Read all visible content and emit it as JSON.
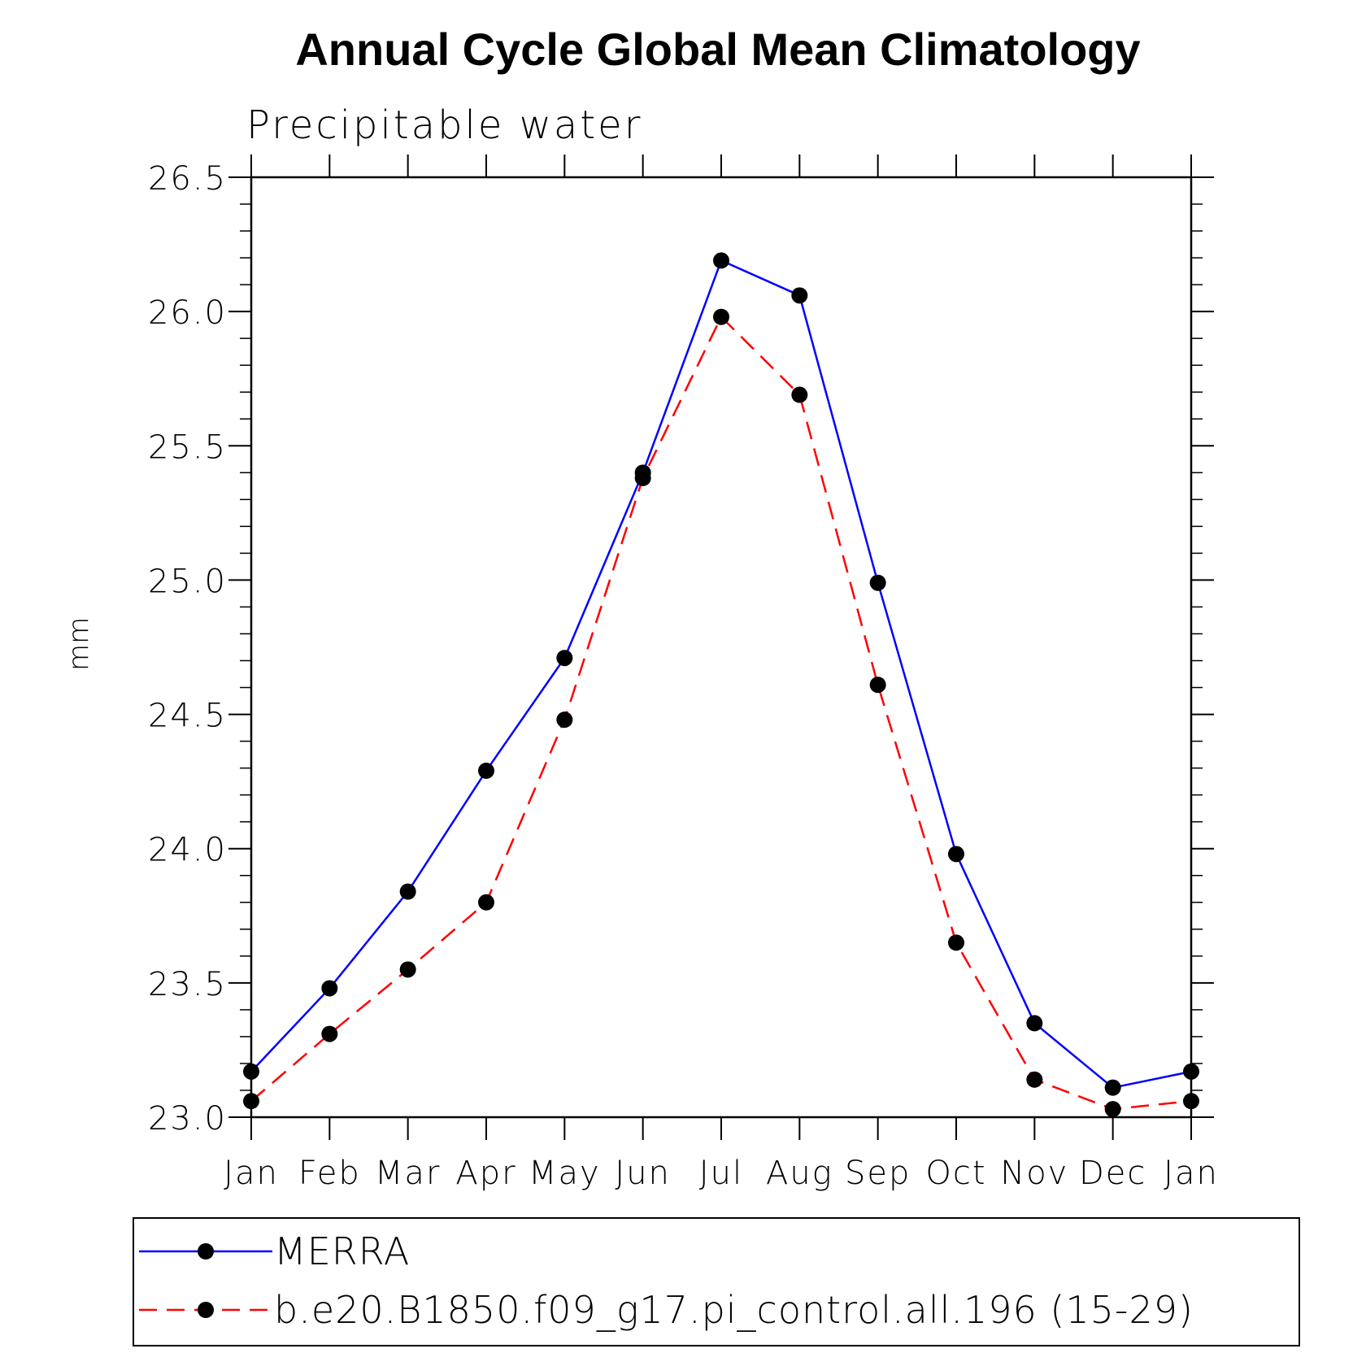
{
  "chart_data": {
    "type": "line",
    "title": "Annual Cycle Global Mean Climatology",
    "subtitle": "Precipitable water",
    "xlabel": "",
    "ylabel": "mm",
    "categories": [
      "Jan",
      "Feb",
      "Mar",
      "Apr",
      "May",
      "Jun",
      "Jul",
      "Aug",
      "Sep",
      "Oct",
      "Nov",
      "Dec",
      "Jan"
    ],
    "ylim": [
      23.0,
      26.5
    ],
    "yticks": [
      "23.0",
      "23.5",
      "24.0",
      "24.5",
      "25.0",
      "25.5",
      "26.0",
      "26.5"
    ],
    "grid": false,
    "legend_position": "bottom",
    "series": [
      {
        "name": "MERRA",
        "color": "#0000ff",
        "dash": "solid",
        "values": [
          23.17,
          23.48,
          23.84,
          24.29,
          24.71,
          25.4,
          26.19,
          26.06,
          24.99,
          23.98,
          23.35,
          23.11,
          23.17
        ]
      },
      {
        "name": "b.e20.B1850.f09_g17.pi_control.all.196 (15-29)",
        "color": "#ff0000",
        "dash": "dashed",
        "values": [
          23.06,
          23.31,
          23.55,
          23.8,
          24.48,
          25.38,
          25.98,
          25.69,
          24.61,
          23.65,
          23.14,
          23.03,
          23.06
        ]
      }
    ]
  }
}
